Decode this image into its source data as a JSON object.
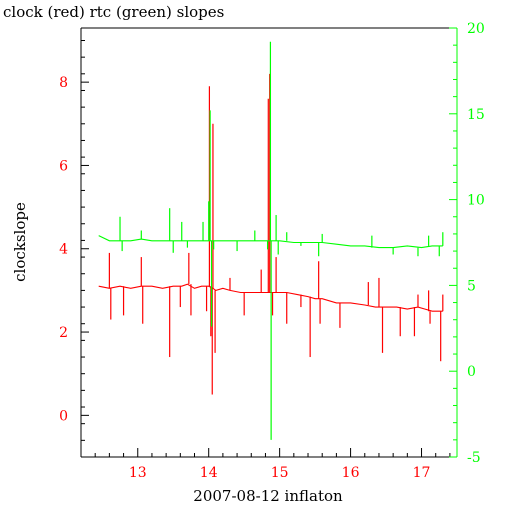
{
  "chart_data": {
    "type": "line",
    "title": "clock (red) rtc (green) slopes",
    "xlabel": "2007-08-12 inflaton",
    "ylabel": "clockslope",
    "xlim": [
      12.2,
      17.5
    ],
    "ylim_left": [
      -1.0,
      9.3
    ],
    "ylim_right": [
      -5.0,
      20.0
    ],
    "x_ticks": [
      "13",
      "14",
      "15",
      "16",
      "17"
    ],
    "y_left_ticks": [
      "0",
      "2",
      "4",
      "6",
      "8"
    ],
    "y_right_ticks": [
      "-5",
      "0",
      "5",
      "10",
      "15",
      "20"
    ],
    "colors": {
      "clock": "#ff0000",
      "rtc": "#00ff00",
      "axes": "#000000"
    },
    "series": [
      {
        "name": "clock",
        "axis": "left",
        "color": "#ff0000",
        "x": [
          12.45,
          12.6,
          12.75,
          12.9,
          13.05,
          13.2,
          13.35,
          13.5,
          13.62,
          13.7,
          13.8,
          13.9,
          14.0,
          14.06,
          14.1,
          14.2,
          14.3,
          14.45,
          14.6,
          14.75,
          14.85,
          14.95,
          15.1,
          15.25,
          15.4,
          15.5,
          15.6,
          15.8,
          16.0,
          16.2,
          16.35,
          16.5,
          16.65,
          16.8,
          16.95,
          17.05,
          17.15,
          17.3
        ],
        "y": [
          3.1,
          3.05,
          3.1,
          3.05,
          3.1,
          3.1,
          3.05,
          3.1,
          3.1,
          3.15,
          3.05,
          3.1,
          3.1,
          3.05,
          3.0,
          3.05,
          3.0,
          2.95,
          2.95,
          2.95,
          2.95,
          2.95,
          2.95,
          2.9,
          2.85,
          2.8,
          2.8,
          2.7,
          2.7,
          2.65,
          2.6,
          2.6,
          2.6,
          2.55,
          2.6,
          2.55,
          2.5,
          2.5
        ],
        "spikes": [
          {
            "x": 12.6,
            "y": 3.9
          },
          {
            "x": 12.62,
            "y": 2.3
          },
          {
            "x": 12.8,
            "y": 2.4
          },
          {
            "x": 13.05,
            "y": 3.8
          },
          {
            "x": 13.07,
            "y": 2.2
          },
          {
            "x": 13.45,
            "y": 1.4
          },
          {
            "x": 13.6,
            "y": 2.6
          },
          {
            "x": 13.72,
            "y": 3.9
          },
          {
            "x": 13.75,
            "y": 2.4
          },
          {
            "x": 13.97,
            "y": 2.5
          },
          {
            "x": 14.01,
            "y": 7.9
          },
          {
            "x": 14.03,
            "y": 1.9
          },
          {
            "x": 14.05,
            "y": 0.5
          },
          {
            "x": 14.06,
            "y": 7.0
          },
          {
            "x": 14.09,
            "y": 1.5
          },
          {
            "x": 14.3,
            "y": 3.3
          },
          {
            "x": 14.5,
            "y": 2.4
          },
          {
            "x": 14.74,
            "y": 3.5
          },
          {
            "x": 14.84,
            "y": 7.6
          },
          {
            "x": 14.86,
            "y": 8.2
          },
          {
            "x": 14.9,
            "y": 2.4
          },
          {
            "x": 14.95,
            "y": 3.8
          },
          {
            "x": 15.1,
            "y": 2.2
          },
          {
            "x": 15.3,
            "y": 2.6
          },
          {
            "x": 15.43,
            "y": 1.4
          },
          {
            "x": 15.55,
            "y": 3.7
          },
          {
            "x": 15.57,
            "y": 2.2
          },
          {
            "x": 15.85,
            "y": 2.1
          },
          {
            "x": 16.25,
            "y": 3.2
          },
          {
            "x": 16.4,
            "y": 3.3
          },
          {
            "x": 16.45,
            "y": 1.5
          },
          {
            "x": 16.7,
            "y": 1.9
          },
          {
            "x": 16.9,
            "y": 1.9
          },
          {
            "x": 16.95,
            "y": 2.9
          },
          {
            "x": 17.1,
            "y": 3.0
          },
          {
            "x": 17.12,
            "y": 2.2
          },
          {
            "x": 17.27,
            "y": 1.3
          },
          {
            "x": 17.3,
            "y": 2.9
          }
        ]
      },
      {
        "name": "rtc",
        "axis": "right",
        "color": "#00ff00",
        "x": [
          12.45,
          12.6,
          12.75,
          12.9,
          13.05,
          13.2,
          13.35,
          13.5,
          13.65,
          13.8,
          13.95,
          14.1,
          14.3,
          14.5,
          14.7,
          14.85,
          15.0,
          15.2,
          15.4,
          15.6,
          15.8,
          16.0,
          16.2,
          16.4,
          16.6,
          16.8,
          17.0,
          17.15,
          17.3
        ],
        "y": [
          7.9,
          7.6,
          7.6,
          7.6,
          7.7,
          7.6,
          7.6,
          7.6,
          7.6,
          7.6,
          7.6,
          7.6,
          7.6,
          7.6,
          7.6,
          7.6,
          7.6,
          7.5,
          7.5,
          7.5,
          7.4,
          7.3,
          7.3,
          7.2,
          7.2,
          7.3,
          7.2,
          7.3,
          7.3
        ],
        "spikes": [
          {
            "x": 12.75,
            "y": 9.0
          },
          {
            "x": 12.78,
            "y": 7.0
          },
          {
            "x": 13.05,
            "y": 8.2
          },
          {
            "x": 13.45,
            "y": 9.5
          },
          {
            "x": 13.5,
            "y": 6.9
          },
          {
            "x": 13.62,
            "y": 8.7
          },
          {
            "x": 13.7,
            "y": 7.2
          },
          {
            "x": 13.92,
            "y": 8.7
          },
          {
            "x": 14.0,
            "y": 9.9
          },
          {
            "x": 14.02,
            "y": 15.2
          },
          {
            "x": 14.04,
            "y": 2.6
          },
          {
            "x": 14.07,
            "y": 7.1
          },
          {
            "x": 14.4,
            "y": 7.0
          },
          {
            "x": 14.65,
            "y": 8.2
          },
          {
            "x": 14.83,
            "y": 7.1
          },
          {
            "x": 14.87,
            "y": 19.2
          },
          {
            "x": 14.88,
            "y": -4.0
          },
          {
            "x": 14.95,
            "y": 9.1
          },
          {
            "x": 14.98,
            "y": 6.8
          },
          {
            "x": 15.1,
            "y": 8.1
          },
          {
            "x": 15.3,
            "y": 7.3
          },
          {
            "x": 15.55,
            "y": 6.7
          },
          {
            "x": 15.6,
            "y": 8.0
          },
          {
            "x": 16.3,
            "y": 7.9
          },
          {
            "x": 16.6,
            "y": 6.8
          },
          {
            "x": 16.95,
            "y": 6.7
          },
          {
            "x": 17.1,
            "y": 7.9
          },
          {
            "x": 17.25,
            "y": 6.7
          },
          {
            "x": 17.3,
            "y": 8.1
          }
        ]
      }
    ]
  }
}
